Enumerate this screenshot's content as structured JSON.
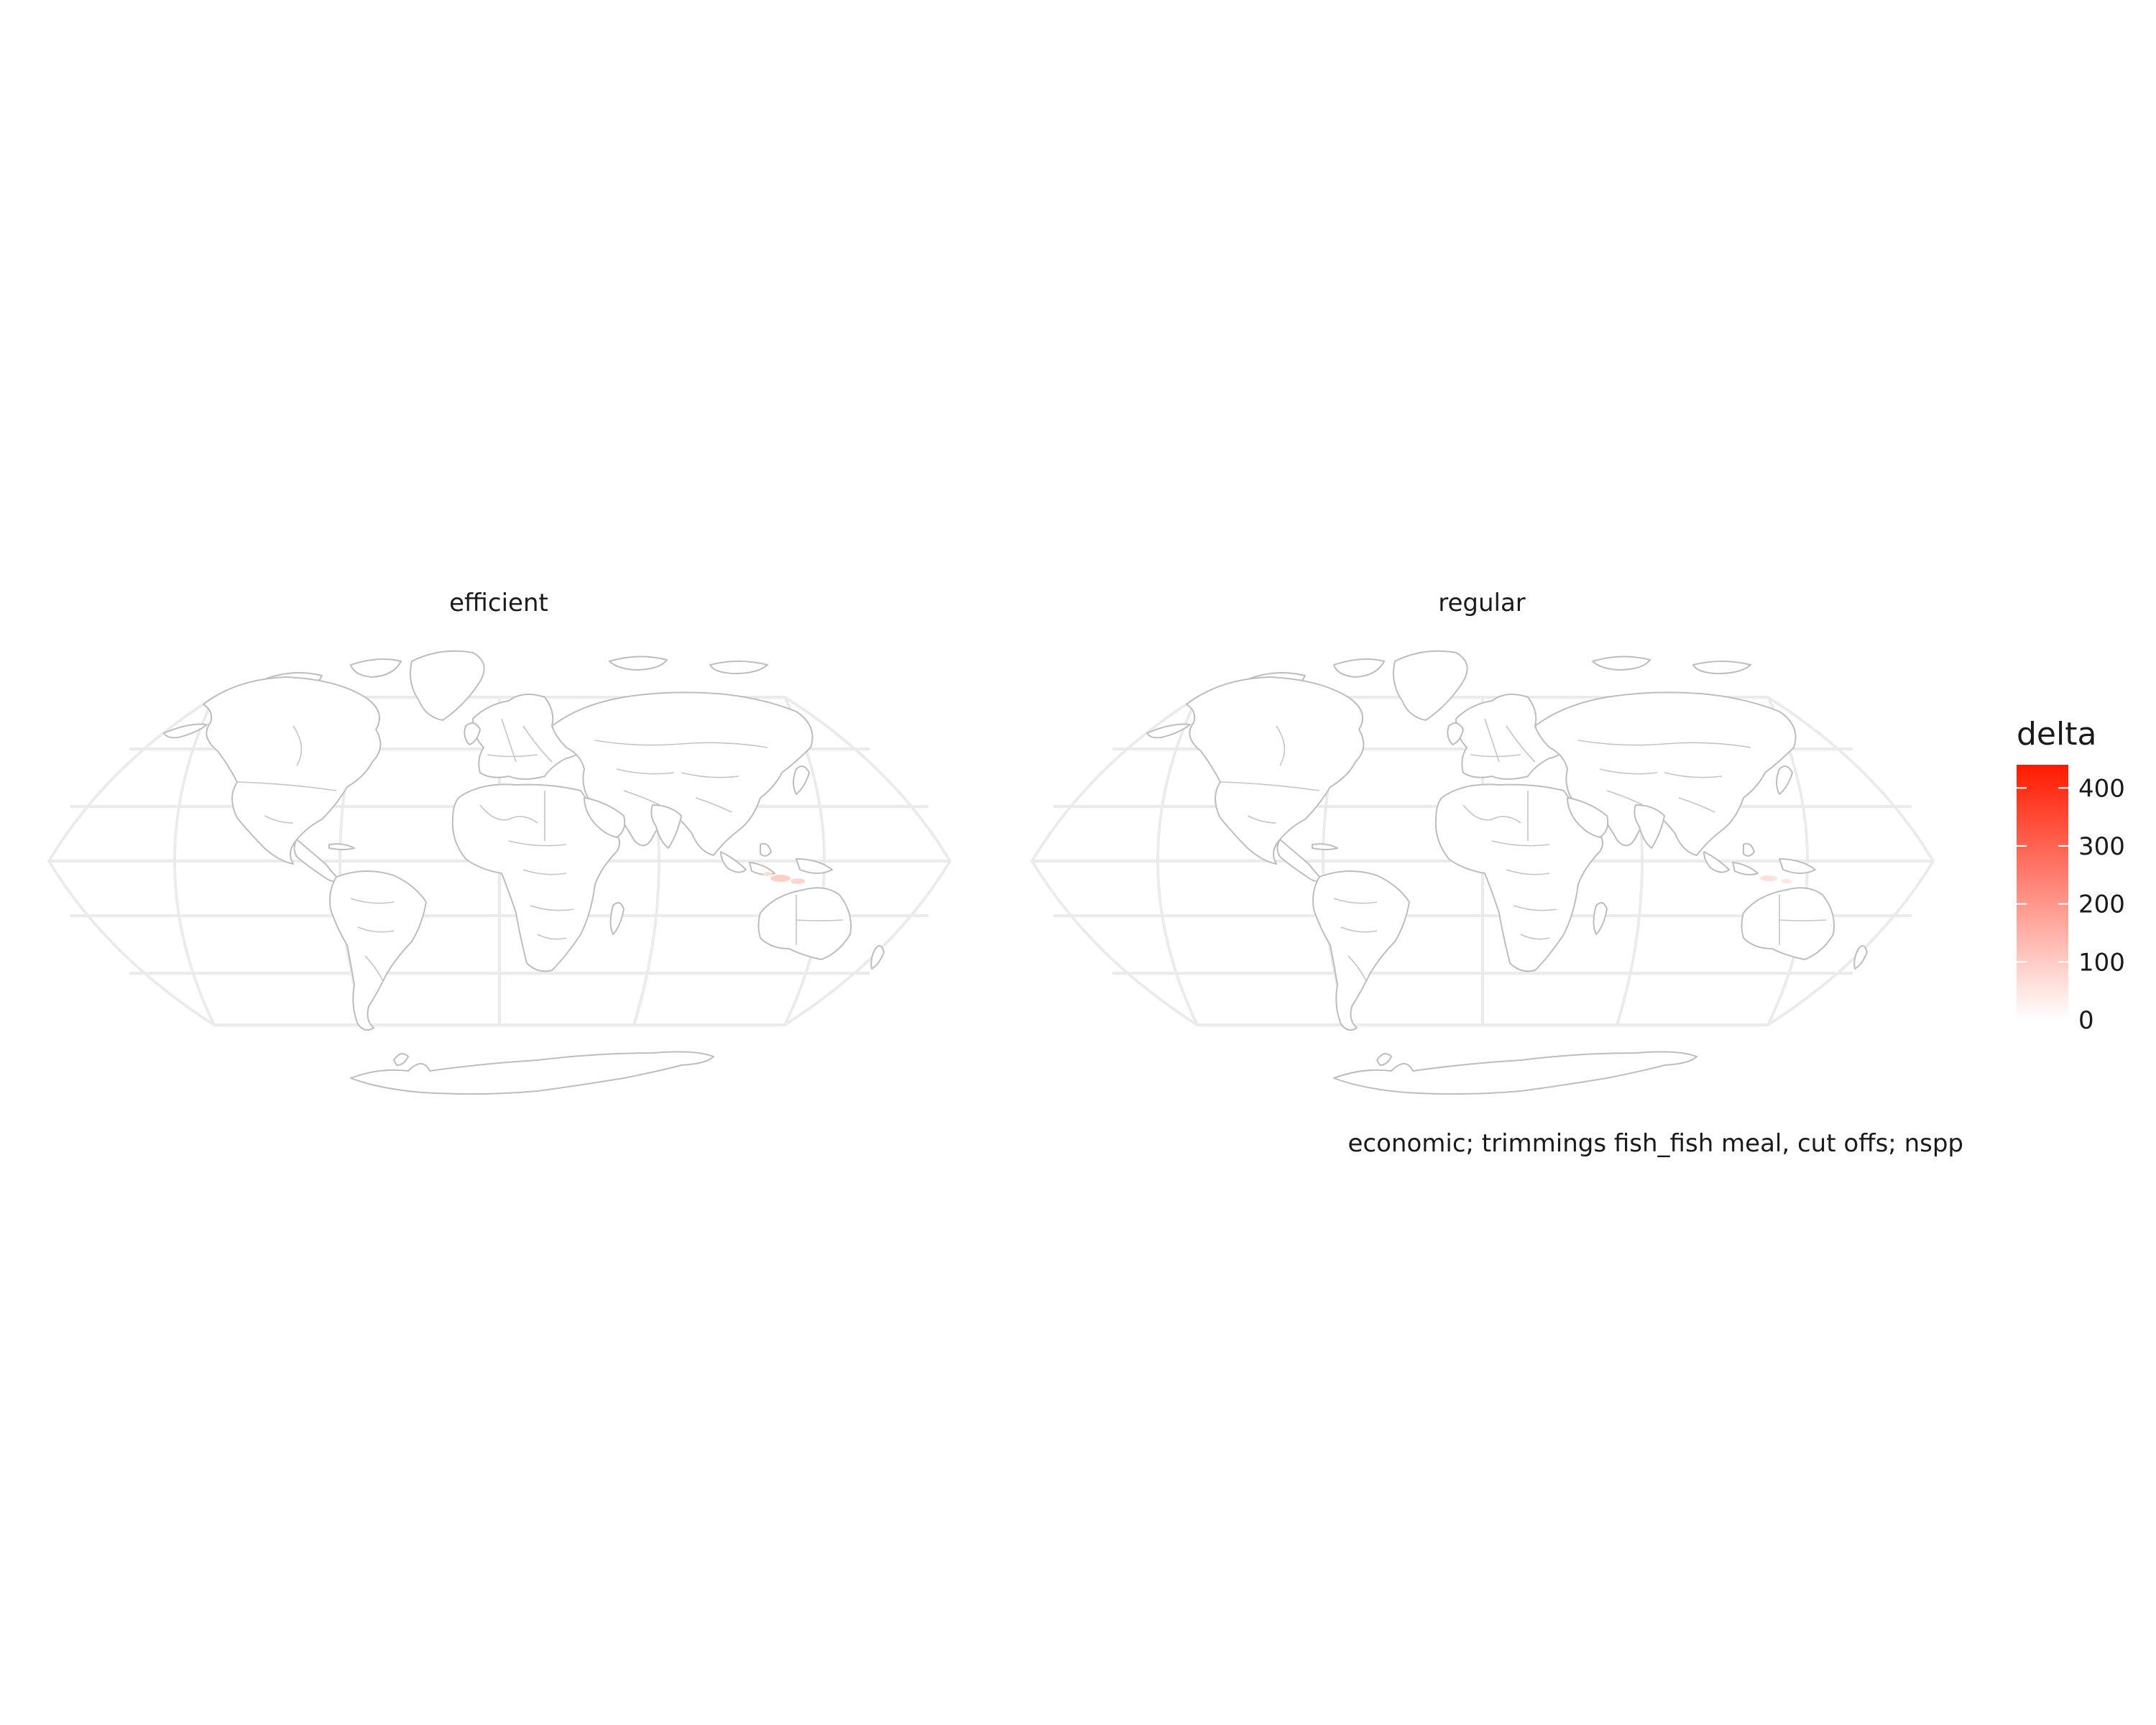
{
  "facets": [
    {
      "id": "efficient",
      "title": "efficient"
    },
    {
      "id": "regular",
      "title": "regular"
    }
  ],
  "legend": {
    "title": "delta",
    "ticks": [
      "400",
      "300",
      "200",
      "100",
      "0"
    ],
    "tick_values": [
      400,
      300,
      200,
      100,
      0
    ],
    "range": [
      0,
      440
    ],
    "color_low": "#ffffff",
    "color_high": "#ff1a00"
  },
  "caption": "economic; trimmings fish_fish meal, cut offs; nspp",
  "colors": {
    "graticule": "#ebebeb",
    "land_outline": "#bdbdbd",
    "land_fill": "#ffffff",
    "highlight": "#ffb3a6"
  },
  "chart_data": {
    "type": "heatmap",
    "projection": "Robinson",
    "facets": [
      "efficient",
      "regular"
    ],
    "fill_variable": "delta",
    "scale": {
      "min": 0,
      "max": 440,
      "low": "#ffffff",
      "high": "#ff1a00"
    },
    "graticule": true,
    "legend_position": "right",
    "highlighted_regions": [
      {
        "facet": "efficient",
        "region": "Indonesia / Timor area",
        "delta": 40
      },
      {
        "facet": "regular",
        "region": "Indonesia / Timor area",
        "delta": 20
      }
    ]
  }
}
